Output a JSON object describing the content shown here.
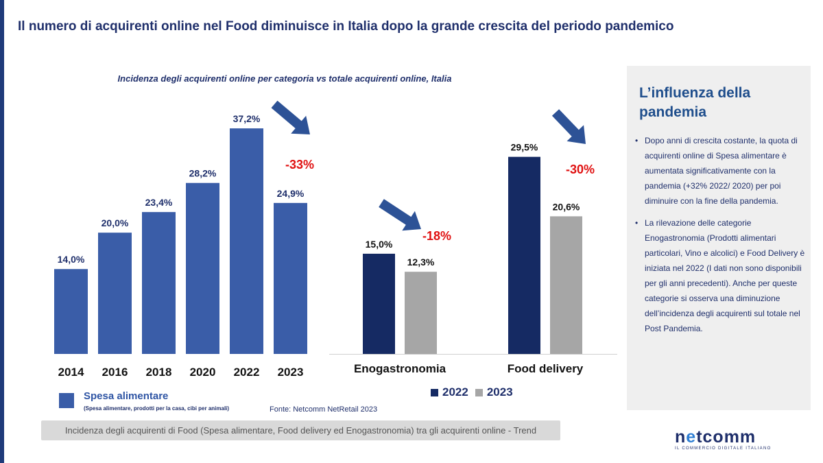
{
  "header": {
    "title": "Il numero di acquirenti online nel Food diminuisce in Italia dopo la grande crescita del periodo pandemico"
  },
  "chart_subtitle": "Incidenza degli acquirenti online per categoria vs totale acquirenti online, Italia",
  "colors": {
    "spesa": "#3a5da8",
    "y2022": "#152a63",
    "y2023": "#a6a6a6",
    "decline": "#e01010",
    "arrow": "#2d5296",
    "text_navy": "#1f2f6b"
  },
  "chart_data": [
    {
      "type": "bar",
      "categories": [
        "2014",
        "2016",
        "2018",
        "2020",
        "2022",
        "2023"
      ],
      "values": [
        14.0,
        20.0,
        23.4,
        28.2,
        37.2,
        24.9
      ],
      "value_labels": [
        "14,0%",
        "20,0%",
        "23,4%",
        "28,2%",
        "37,2%",
        "24,9%"
      ],
      "series_name": "Spesa alimentare",
      "annotation": "-33%",
      "ylim": [
        0,
        40
      ],
      "unit": "%"
    },
    {
      "type": "bar",
      "categories": [
        "Enogastronomia",
        "Food delivery"
      ],
      "series": [
        {
          "name": "2022",
          "values": [
            15.0,
            29.5
          ],
          "value_labels": [
            "15,0%",
            "29,5%"
          ]
        },
        {
          "name": "2023",
          "values": [
            12.3,
            20.6
          ],
          "value_labels": [
            "12,3%",
            "20,6%"
          ]
        }
      ],
      "annotations": [
        "-18%",
        "-30%"
      ],
      "ylim": [
        0,
        40
      ],
      "unit": "%"
    }
  ],
  "legend_left": {
    "label": "Spesa alimentare",
    "note": "(Spesa alimentare, prodotti per la casa, cibi per animali)"
  },
  "legend_right": {
    "items": [
      {
        "label": "2022"
      },
      {
        "label": "2023"
      }
    ]
  },
  "source": "Fonte: Netcomm NetRetail 2023",
  "footer": "Incidenza degli acquirenti di Food (Spesa alimentare, Food delivery ed Enogastronomia) tra gli acquirenti online - Trend",
  "panel": {
    "title": "L’influenza della pandemia",
    "bullets": [
      "Dopo anni di crescita costante, la quota di acquirenti online di Spesa alimentare è aumentata significativamente con la pandemia (+32% 2022/ 2020) per poi diminuire con la fine della pandemia.",
      "La rilevazione delle categorie Enogastronomia (Prodotti alimentari particolari, Vino e alcolici) e Food Delivery è iniziata nel 2022 (I dati non sono disponibili per gli anni precedenti). Anche per queste categorie si osserva una diminuzione dell’incidenza degli acquirenti sul totale nel Post Pandemia."
    ]
  },
  "logo": {
    "word_start": "n",
    "word_e": "e",
    "word_end": "tcomm",
    "tagline": "IL COMMERCIO DIGITALE ITALIANO"
  }
}
